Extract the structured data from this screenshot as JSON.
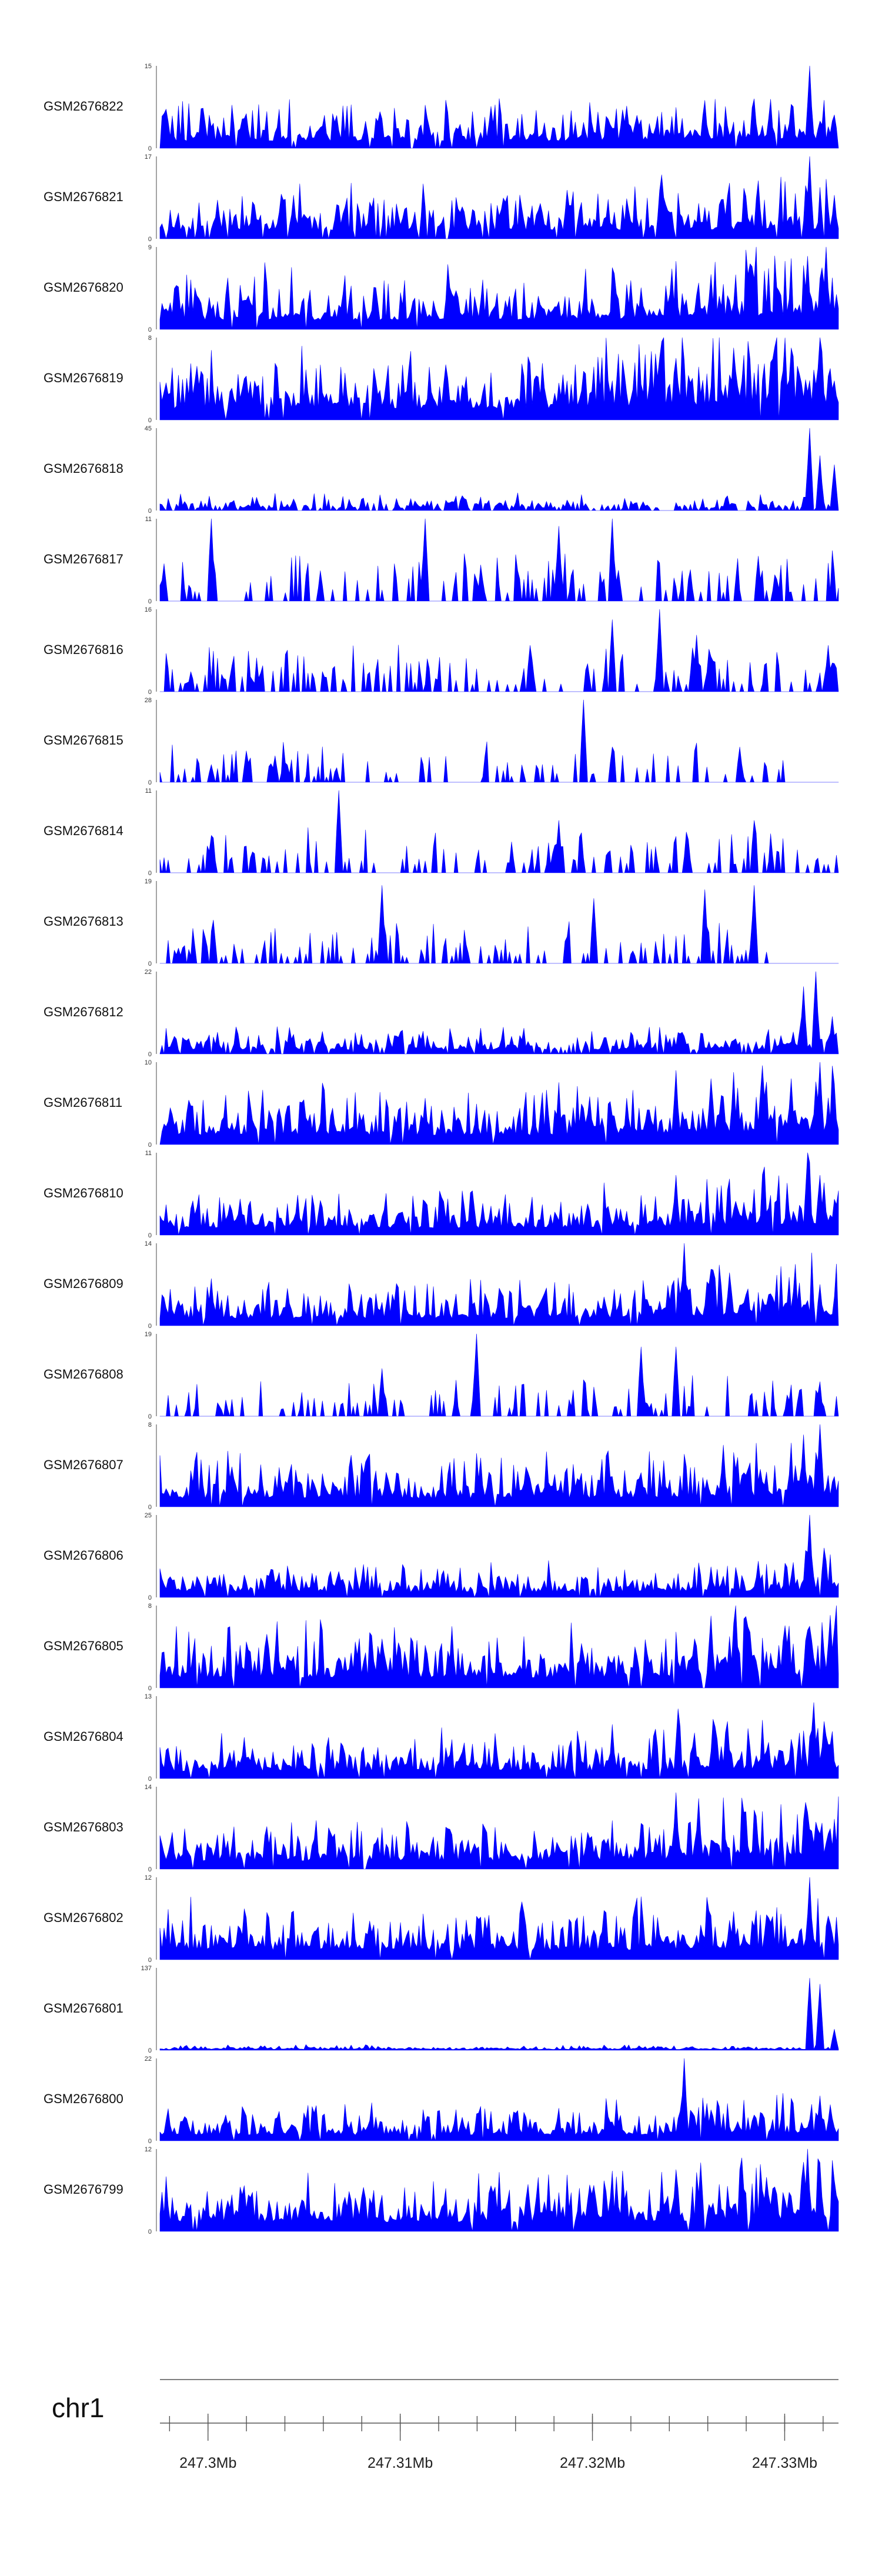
{
  "chart_data": {
    "type": "area",
    "title": "",
    "xlabel": "",
    "ylabel": "",
    "color": "#0000ff",
    "genome": {
      "chromosome": "chr1",
      "region_start_mb": 247.2975,
      "region_end_mb": 247.3328,
      "major_ticks_mb": [
        247.3,
        247.31,
        247.32,
        247.33
      ],
      "major_tick_labels": [
        "247.3Mb",
        "247.31Mb",
        "247.32Mb",
        "247.33Mb"
      ],
      "minor_tick_step_mb": 0.002
    },
    "series": [
      {
        "name": "GSM2676822",
        "ymax": 15,
        "ymin": 0,
        "ymax_label": "15",
        "ymin_label": "0",
        "seed": 11,
        "peakiness": 0.35,
        "sparse": 0.05,
        "late_boost": 1.3,
        "peaks": [
          {
            "x": 247.3216,
            "v": 7
          },
          {
            "x": 247.3284,
            "v": 9
          },
          {
            "x": 247.3303,
            "v": 8
          },
          {
            "x": 247.3313,
            "v": 15
          },
          {
            "x": 247.3325,
            "v": 5
          }
        ]
      },
      {
        "name": "GSM2676821",
        "ymax": 17,
        "ymin": 0,
        "ymax_label": "17",
        "ymin_label": "0",
        "seed": 23,
        "peakiness": 0.4,
        "sparse": 0.08,
        "late_boost": 1.2,
        "peaks": [
          {
            "x": 247.3005,
            "v": 8
          },
          {
            "x": 247.3044,
            "v": 9
          },
          {
            "x": 247.3286,
            "v": 12
          },
          {
            "x": 247.3313,
            "v": 17
          },
          {
            "x": 247.3326,
            "v": 9
          }
        ]
      },
      {
        "name": "GSM2676820",
        "ymax": 9,
        "ymin": 0,
        "ymax_label": "9",
        "ymin_label": "0",
        "seed": 37,
        "peakiness": 0.45,
        "sparse": 0.02,
        "late_boost": 1.6,
        "peaks": [
          {
            "x": 247.3262,
            "v": 6
          },
          {
            "x": 247.3312,
            "v": 8
          },
          {
            "x": 247.3322,
            "v": 9
          }
        ]
      },
      {
        "name": "GSM2676819",
        "ymax": 8,
        "ymin": 0,
        "ymax_label": "8",
        "ymin_label": "0",
        "seed": 41,
        "peakiness": 0.55,
        "sparse": 0.02,
        "late_boost": 1.5,
        "peaks": [
          {
            "x": 247.3243,
            "v": 6
          },
          {
            "x": 247.3273,
            "v": 7
          },
          {
            "x": 247.3303,
            "v": 7
          },
          {
            "x": 247.3318,
            "v": 8
          }
        ]
      },
      {
        "name": "GSM2676818",
        "ymax": 45,
        "ymin": 0,
        "ymax_label": "45",
        "ymin_label": "0",
        "seed": 53,
        "peakiness": 0.12,
        "sparse": 0.3,
        "late_boost": 1.0,
        "peaks": [
          {
            "x": 247.3313,
            "v": 45
          },
          {
            "x": 247.3318,
            "v": 30
          },
          {
            "x": 247.3326,
            "v": 25
          }
        ]
      },
      {
        "name": "GSM2676817",
        "ymax": 11,
        "ymin": 0,
        "ymax_label": "11",
        "ymin_label": "0",
        "seed": 67,
        "peakiness": 0.4,
        "sparse": 0.72,
        "late_boost": 1.0,
        "peaks": [
          {
            "x": 247.2977,
            "v": 5
          },
          {
            "x": 247.3002,
            "v": 11
          },
          {
            "x": 247.3113,
            "v": 11
          },
          {
            "x": 247.3182,
            "v": 10
          },
          {
            "x": 247.321,
            "v": 11
          },
          {
            "x": 247.3286,
            "v": 6
          }
        ]
      },
      {
        "name": "GSM2676816",
        "ymax": 16,
        "ymin": 0,
        "ymax_label": "16",
        "ymin_label": "0",
        "seed": 79,
        "peakiness": 0.35,
        "sparse": 0.7,
        "late_boost": 1.0,
        "peaks": [
          {
            "x": 247.3168,
            "v": 9
          },
          {
            "x": 247.321,
            "v": 14
          },
          {
            "x": 247.3235,
            "v": 16
          },
          {
            "x": 247.3254,
            "v": 11
          },
          {
            "x": 247.3323,
            "v": 9
          }
        ]
      },
      {
        "name": "GSM2676815",
        "ymax": 28,
        "ymin": 0,
        "ymax_label": "28",
        "ymin_label": "0",
        "seed": 83,
        "peakiness": 0.25,
        "sparse": 0.78,
        "late_boost": 1.0,
        "end_mb": 247.33,
        "peaks": [
          {
            "x": 247.3002,
            "v": 6
          },
          {
            "x": 247.3035,
            "v": 9
          },
          {
            "x": 247.3195,
            "v": 28
          },
          {
            "x": 247.321,
            "v": 12
          },
          {
            "x": 247.3277,
            "v": 12
          }
        ]
      },
      {
        "name": "GSM2676814",
        "ymax": 11,
        "ymin": 0,
        "ymax_label": "11",
        "ymin_label": "0",
        "seed": 97,
        "peakiness": 0.4,
        "sparse": 0.7,
        "late_boost": 1.0,
        "peaks": [
          {
            "x": 247.3002,
            "v": 5
          },
          {
            "x": 247.3068,
            "v": 11
          },
          {
            "x": 247.3183,
            "v": 7
          },
          {
            "x": 247.3284,
            "v": 7
          }
        ]
      },
      {
        "name": "GSM2676813",
        "ymax": 19,
        "ymin": 0,
        "ymax_label": "19",
        "ymin_label": "0",
        "seed": 101,
        "peakiness": 0.3,
        "sparse": 0.74,
        "late_boost": 1.0,
        "end_mb": 247.33,
        "peaks": [
          {
            "x": 247.3003,
            "v": 10
          },
          {
            "x": 247.309,
            "v": 18
          },
          {
            "x": 247.3201,
            "v": 15
          },
          {
            "x": 247.3258,
            "v": 17
          },
          {
            "x": 247.3284,
            "v": 18
          }
        ]
      },
      {
        "name": "GSM2676812",
        "ymax": 22,
        "ymin": 0,
        "ymax_label": "22",
        "ymin_label": "0",
        "seed": 113,
        "peakiness": 0.2,
        "sparse": 0.15,
        "late_boost": 1.0,
        "peaks": [
          {
            "x": 247.306,
            "v": 6
          },
          {
            "x": 247.331,
            "v": 18
          },
          {
            "x": 247.3316,
            "v": 22
          },
          {
            "x": 247.3325,
            "v": 10
          }
        ]
      },
      {
        "name": "GSM2676811",
        "ymax": 10,
        "ymin": 0,
        "ymax_label": "10",
        "ymin_label": "0",
        "seed": 127,
        "peakiness": 0.45,
        "sparse": 0.03,
        "late_boost": 1.5,
        "peaks": [
          {
            "x": 247.3243,
            "v": 9
          },
          {
            "x": 247.3262,
            "v": 8
          },
          {
            "x": 247.3303,
            "v": 8
          },
          {
            "x": 247.3318,
            "v": 10
          }
        ]
      },
      {
        "name": "GSM2676810",
        "ymax": 11,
        "ymin": 0,
        "ymax_label": "11",
        "ymin_label": "0",
        "seed": 131,
        "peakiness": 0.35,
        "sparse": 0.02,
        "late_boost": 1.6,
        "peaks": [
          {
            "x": 247.3243,
            "v": 8
          },
          {
            "x": 247.3312,
            "v": 11
          },
          {
            "x": 247.3318,
            "v": 8
          }
        ]
      },
      {
        "name": "GSM2676809",
        "ymax": 14,
        "ymin": 0,
        "ymax_label": "14",
        "ymin_label": "0",
        "seed": 149,
        "peakiness": 0.35,
        "sparse": 0.03,
        "late_boost": 1.5,
        "peaks": [
          {
            "x": 247.3002,
            "v": 8
          },
          {
            "x": 247.3248,
            "v": 14
          },
          {
            "x": 247.3271,
            "v": 9
          },
          {
            "x": 247.3318,
            "v": 7
          }
        ]
      },
      {
        "name": "GSM2676808",
        "ymax": 19,
        "ymin": 0,
        "ymax_label": "19",
        "ymin_label": "0",
        "seed": 157,
        "peakiness": 0.3,
        "sparse": 0.75,
        "late_boost": 1.0,
        "peaks": [
          {
            "x": 247.309,
            "v": 11
          },
          {
            "x": 247.314,
            "v": 19
          },
          {
            "x": 247.3225,
            "v": 16
          },
          {
            "x": 247.3244,
            "v": 16
          },
          {
            "x": 247.3308,
            "v": 6
          }
        ]
      },
      {
        "name": "GSM2676807",
        "ymax": 8,
        "ymin": 0,
        "ymax_label": "8",
        "ymin_label": "0",
        "seed": 163,
        "peakiness": 0.4,
        "sparse": 0.03,
        "late_boost": 1.4,
        "peaks": [
          {
            "x": 247.3268,
            "v": 6
          },
          {
            "x": 247.331,
            "v": 7
          },
          {
            "x": 247.3318,
            "v": 8
          }
        ]
      },
      {
        "name": "GSM2676806",
        "ymax": 25,
        "ymin": 0,
        "ymax_label": "25",
        "ymin_label": "0",
        "seed": 173,
        "peakiness": 0.25,
        "sparse": 0.05,
        "late_boost": 1.3,
        "peaks": [
          {
            "x": 247.3286,
            "v": 11
          },
          {
            "x": 247.3313,
            "v": 25
          },
          {
            "x": 247.332,
            "v": 15
          }
        ]
      },
      {
        "name": "GSM2676805",
        "ymax": 8,
        "ymin": 0,
        "ymax_label": "8",
        "ymin_label": "0",
        "seed": 181,
        "peakiness": 0.5,
        "sparse": 0.02,
        "late_boost": 1.3,
        "peaks": [
          {
            "x": 247.3262,
            "v": 7
          },
          {
            "x": 247.3274,
            "v": 8
          },
          {
            "x": 247.3313,
            "v": 6
          }
        ]
      },
      {
        "name": "GSM2676804",
        "ymax": 13,
        "ymin": 0,
        "ymax_label": "13",
        "ymin_label": "0",
        "seed": 191,
        "peakiness": 0.35,
        "sparse": 0.03,
        "late_boost": 1.4,
        "peaks": [
          {
            "x": 247.3245,
            "v": 11
          },
          {
            "x": 247.327,
            "v": 9
          },
          {
            "x": 247.3315,
            "v": 12
          },
          {
            "x": 247.3321,
            "v": 9
          }
        ]
      },
      {
        "name": "GSM2676803",
        "ymax": 14,
        "ymin": 0,
        "ymax_label": "14",
        "ymin_label": "0",
        "seed": 197,
        "peakiness": 0.4,
        "sparse": 0.03,
        "late_boost": 1.5,
        "peaks": [
          {
            "x": 247.3243,
            "v": 13
          },
          {
            "x": 247.3255,
            "v": 12
          },
          {
            "x": 247.3285,
            "v": 9
          },
          {
            "x": 247.3316,
            "v": 8
          }
        ]
      },
      {
        "name": "GSM2676802",
        "ymax": 12,
        "ymin": 0,
        "ymax_label": "12",
        "ymin_label": "0",
        "seed": 211,
        "peakiness": 0.45,
        "sparse": 0.03,
        "late_boost": 1.1,
        "peaks": [
          {
            "x": 247.3273,
            "v": 7
          },
          {
            "x": 247.3313,
            "v": 12
          }
        ]
      },
      {
        "name": "GSM2676801",
        "ymax": 137,
        "ymin": 0,
        "ymax_label": "137",
        "ymin_label": "0",
        "seed": 223,
        "peakiness": 0.04,
        "sparse": 0.0,
        "late_boost": 1.0,
        "peaks": [
          {
            "x": 247.3313,
            "v": 120
          },
          {
            "x": 247.3318,
            "v": 110
          },
          {
            "x": 247.3326,
            "v": 35
          }
        ]
      },
      {
        "name": "GSM2676800",
        "ymax": 22,
        "ymin": 0,
        "ymax_label": "22",
        "ymin_label": "0",
        "seed": 227,
        "peakiness": 0.28,
        "sparse": 0.03,
        "late_boost": 1.3,
        "peaks": [
          {
            "x": 247.3248,
            "v": 22
          },
          {
            "x": 247.326,
            "v": 10
          },
          {
            "x": 247.3318,
            "v": 12
          }
        ]
      },
      {
        "name": "GSM2676799",
        "ymax": 12,
        "ymin": 0,
        "ymax_label": "12",
        "ymin_label": "0",
        "seed": 233,
        "peakiness": 0.45,
        "sparse": 0.03,
        "late_boost": 1.3,
        "peaks": [
          {
            "x": 247.3244,
            "v": 9
          },
          {
            "x": 247.3256,
            "v": 10
          },
          {
            "x": 247.3312,
            "v": 12
          },
          {
            "x": 247.3318,
            "v": 10
          }
        ]
      }
    ]
  }
}
